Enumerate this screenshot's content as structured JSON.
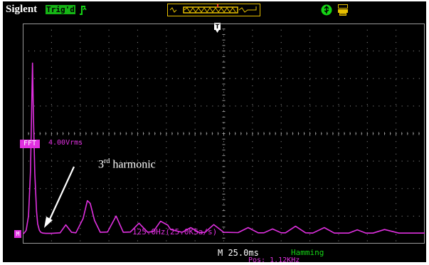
{
  "header": {
    "brand": "Siglent",
    "trigger_status": "Trig'd"
  },
  "channel": {
    "label": "FFT",
    "scale": "4.00Vrms",
    "marker": "M",
    "center_freq": "125.0Hz(25.0KSa/s)"
  },
  "annotation": {
    "ordinal": "3",
    "suffix": "rd",
    "text": " harmonic"
  },
  "footer": {
    "timebase": "M 25.0ms",
    "window_function": "Hamming",
    "position": "Pos: 1.12KHz"
  },
  "colors": {
    "trace": "#e030e0",
    "grid": "#9a9a9a",
    "trigger_badge": "#15b515",
    "trigger_window": "#e8c000"
  },
  "icons": {
    "trigger_edge": "trigger-edge-icon",
    "trigger_marker": "t-marker-icon",
    "usb": "usb-icon",
    "printer": "printer-icon"
  },
  "chart_data": {
    "type": "line",
    "title": "",
    "grid": true,
    "x_divisions": 14,
    "y_divisions": 8,
    "series": [
      {
        "points": [
          [
            0.0,
            0.0
          ],
          [
            0.05,
            0.02
          ],
          [
            0.12,
            0.12
          ],
          [
            0.2,
            0.65
          ],
          [
            0.27,
            2.3
          ],
          [
            0.31,
            4.5
          ],
          [
            0.34,
            6.2
          ],
          [
            0.37,
            4.4
          ],
          [
            0.42,
            2.2
          ],
          [
            0.48,
            0.8
          ],
          [
            0.52,
            0.35
          ],
          [
            0.58,
            0.12
          ],
          [
            0.63,
            0.05
          ],
          [
            0.7,
            0.02
          ],
          [
            0.8,
            0.01
          ],
          [
            0.9,
            0.01
          ],
          [
            1.0,
            0.01
          ],
          [
            1.3,
            0.03
          ],
          [
            1.5,
            0.32
          ],
          [
            1.7,
            0.05
          ],
          [
            1.85,
            0.03
          ],
          [
            2.1,
            0.55
          ],
          [
            2.25,
            1.2
          ],
          [
            2.35,
            1.1
          ],
          [
            2.5,
            0.48
          ],
          [
            2.7,
            0.05
          ],
          [
            2.95,
            0.06
          ],
          [
            3.25,
            0.64
          ],
          [
            3.5,
            0.05
          ],
          [
            3.75,
            0.06
          ],
          [
            4.05,
            0.38
          ],
          [
            4.35,
            0.05
          ],
          [
            4.55,
            0.08
          ],
          [
            4.8,
            0.45
          ],
          [
            5.05,
            0.31
          ],
          [
            5.15,
            0.15
          ],
          [
            5.55,
            0.05
          ],
          [
            5.85,
            0.22
          ],
          [
            6.15,
            0.04
          ],
          [
            6.35,
            0.05
          ],
          [
            6.65,
            0.33
          ],
          [
            7.0,
            0.05
          ],
          [
            7.5,
            0.04
          ],
          [
            7.85,
            0.22
          ],
          [
            8.2,
            0.03
          ],
          [
            8.4,
            0.03
          ],
          [
            8.7,
            0.17
          ],
          [
            9.0,
            0.03
          ],
          [
            9.15,
            0.03
          ],
          [
            9.5,
            0.27
          ],
          [
            9.85,
            0.03
          ],
          [
            10.1,
            0.02
          ],
          [
            10.5,
            0.22
          ],
          [
            10.85,
            0.02
          ],
          [
            11.35,
            0.02
          ],
          [
            11.65,
            0.14
          ],
          [
            11.95,
            0.02
          ],
          [
            12.2,
            0.02
          ],
          [
            12.6,
            0.15
          ],
          [
            13.1,
            0.02
          ],
          [
            14.0,
            0.02
          ]
        ]
      }
    ]
  }
}
